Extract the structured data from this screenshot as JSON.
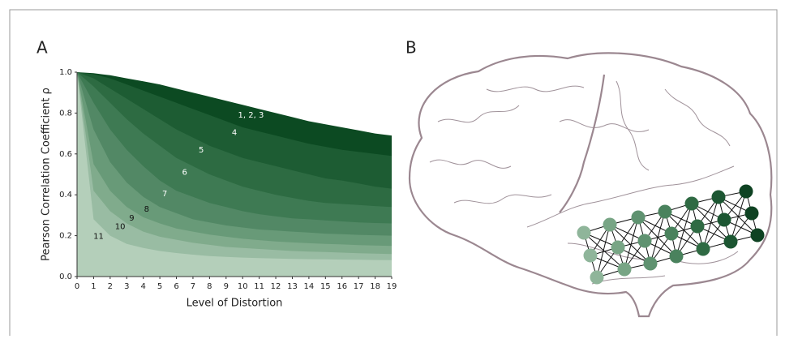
{
  "panel_labels": [
    "A",
    "B"
  ],
  "chart_data": {
    "type": "area",
    "x_label": "Level of Distortion",
    "y_label": "Pearson Correlation Coefficient ρ",
    "x": [
      0,
      1,
      2,
      3,
      4,
      5,
      6,
      7,
      8,
      9,
      10,
      11,
      12,
      13,
      14,
      15,
      16,
      17,
      18,
      19
    ],
    "xlim": [
      0,
      19
    ],
    "xticks": [
      0,
      1,
      2,
      3,
      4,
      5,
      6,
      7,
      8,
      9,
      10,
      11,
      12,
      13,
      14,
      15,
      16,
      17,
      18,
      19
    ],
    "ylim": [
      0,
      1
    ],
    "yticks": [
      {
        "value": 0,
        "label": "0.0"
      },
      0.2,
      0.4,
      0.6,
      0.8,
      {
        "value": 1,
        "label": "1.0"
      }
    ],
    "series": [
      {
        "name": "1, 2, 3",
        "color": "#0c4a22",
        "values": [
          1,
          0.995,
          0.985,
          0.97,
          0.955,
          0.94,
          0.92,
          0.9,
          0.88,
          0.86,
          0.84,
          0.82,
          0.8,
          0.78,
          0.76,
          0.745,
          0.73,
          0.715,
          0.7,
          0.69
        ]
      },
      {
        "name": "4",
        "color": "#1d5c33",
        "values": [
          1,
          0.99,
          0.97,
          0.94,
          0.91,
          0.88,
          0.85,
          0.82,
          0.79,
          0.76,
          0.73,
          0.71,
          0.69,
          0.67,
          0.65,
          0.635,
          0.62,
          0.61,
          0.6,
          0.59
        ]
      },
      {
        "name": "5",
        "color": "#2d6b42",
        "values": [
          1,
          0.97,
          0.92,
          0.87,
          0.82,
          0.77,
          0.72,
          0.68,
          0.64,
          0.61,
          0.58,
          0.56,
          0.54,
          0.52,
          0.5,
          0.48,
          0.47,
          0.455,
          0.44,
          0.43
        ]
      },
      {
        "name": "6",
        "color": "#3e7a53",
        "values": [
          1,
          0.93,
          0.85,
          0.77,
          0.7,
          0.64,
          0.58,
          0.54,
          0.5,
          0.47,
          0.44,
          0.42,
          0.4,
          0.385,
          0.37,
          0.36,
          0.355,
          0.35,
          0.345,
          0.34
        ]
      },
      {
        "name": "7",
        "color": "#528865",
        "values": [
          1,
          0.85,
          0.72,
          0.62,
          0.54,
          0.47,
          0.42,
          0.39,
          0.36,
          0.34,
          0.32,
          0.305,
          0.295,
          0.285,
          0.28,
          0.275,
          0.27,
          0.265,
          0.262,
          0.26
        ]
      },
      {
        "name": "8",
        "color": "#689a78",
        "values": [
          1,
          0.72,
          0.56,
          0.46,
          0.39,
          0.34,
          0.31,
          0.28,
          0.265,
          0.25,
          0.24,
          0.23,
          0.225,
          0.22,
          0.215,
          0.21,
          0.207,
          0.204,
          0.202,
          0.2
        ]
      },
      {
        "name": "9",
        "color": "#80ab8c",
        "values": [
          1,
          0.55,
          0.42,
          0.34,
          0.29,
          0.26,
          0.235,
          0.22,
          0.205,
          0.195,
          0.185,
          0.178,
          0.172,
          0.167,
          0.163,
          0.16,
          0.157,
          0.154,
          0.152,
          0.15
        ]
      },
      {
        "name": "10",
        "color": "#99bca3",
        "values": [
          1,
          0.42,
          0.32,
          0.26,
          0.22,
          0.195,
          0.18,
          0.165,
          0.155,
          0.145,
          0.14,
          0.135,
          0.13,
          0.125,
          0.122,
          0.12,
          0.117,
          0.114,
          0.112,
          0.11
        ]
      },
      {
        "name": "11",
        "color": "#b4cfba",
        "values": [
          1,
          0.28,
          0.2,
          0.16,
          0.14,
          0.125,
          0.115,
          0.107,
          0.1,
          0.096,
          0.093,
          0.09,
          0.088,
          0.086,
          0.085,
          0.084,
          0.083,
          0.082,
          0.081,
          0.08
        ]
      }
    ]
  }
}
